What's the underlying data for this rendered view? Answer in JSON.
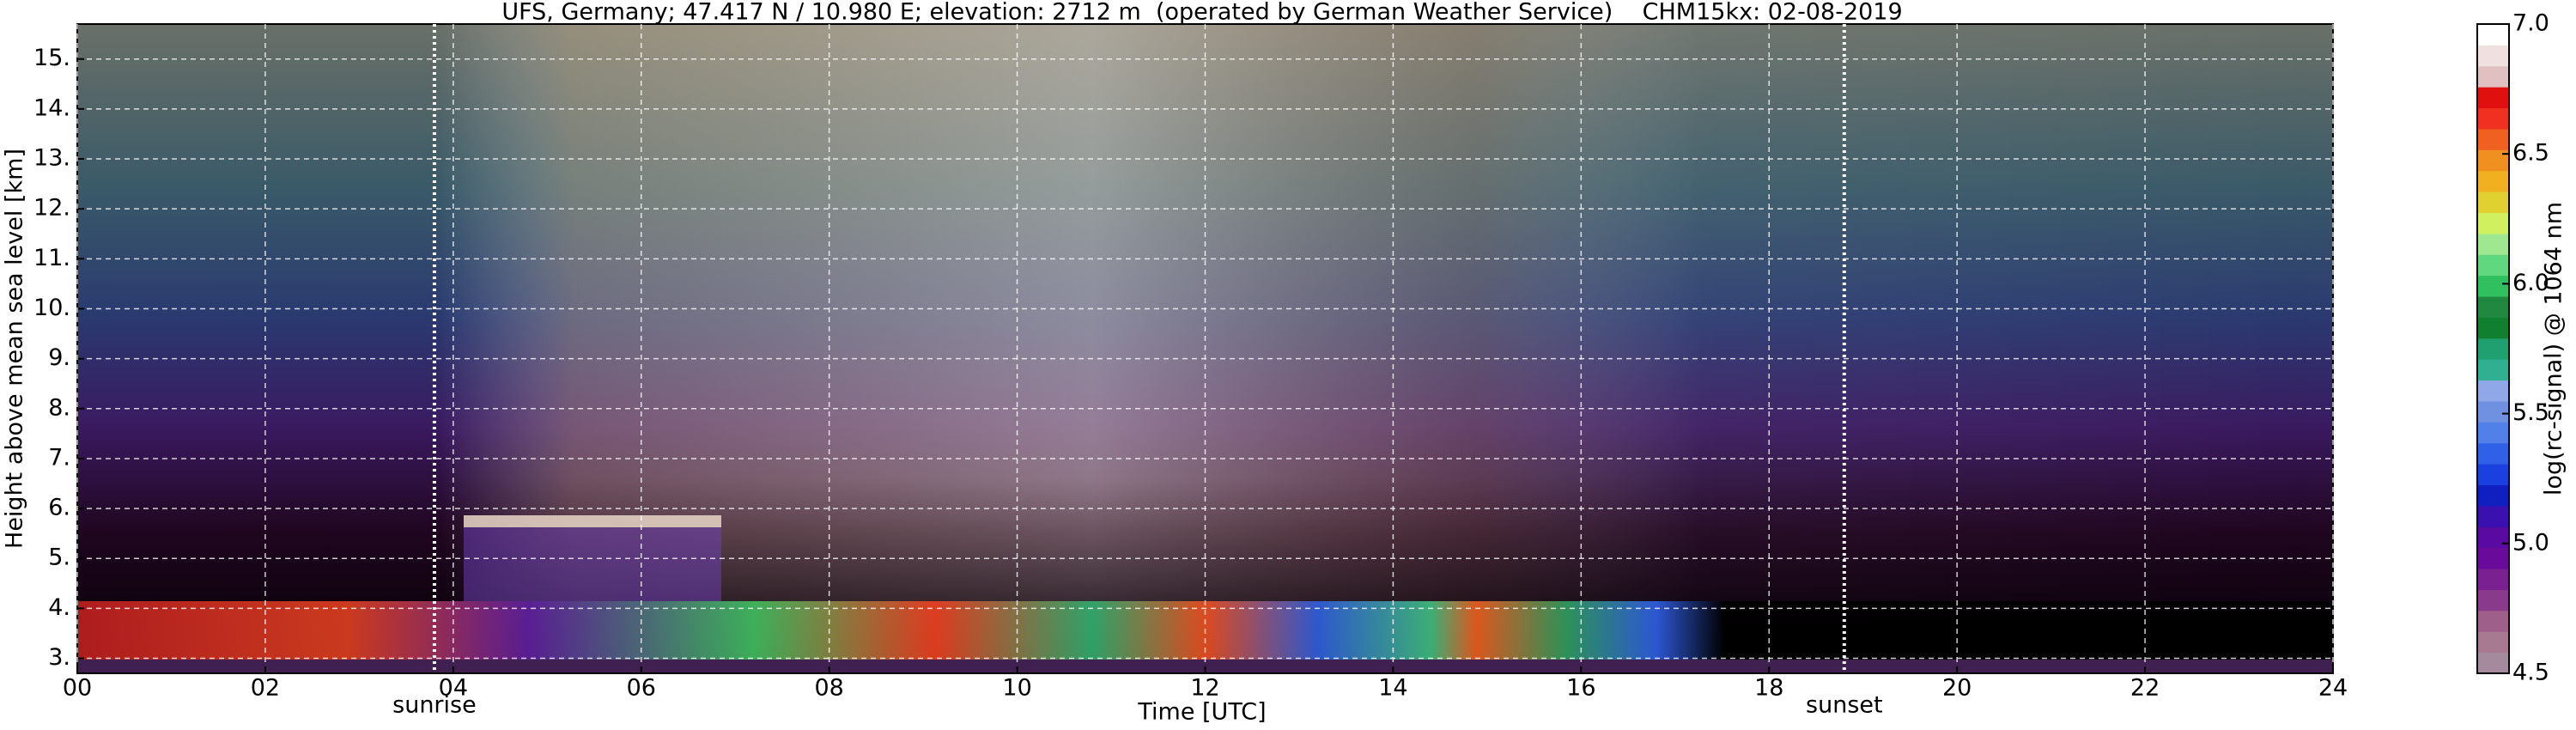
{
  "chart_data": {
    "type": "heatmap",
    "title": "UFS, Germany; 47.417 N / 10.980 E; elevation: 2712 m  (operated by German Weather Service)    CHM15kx: 02-08-2019",
    "xlabel": "Time [UTC]",
    "ylabel": "Height above mean sea level [km]",
    "xlim": [
      0,
      24
    ],
    "xticks": [
      {
        "value": 0,
        "label": "00"
      },
      {
        "value": 2,
        "label": "02"
      },
      {
        "value": 4,
        "label": "04"
      },
      {
        "value": 6,
        "label": "06"
      },
      {
        "value": 8,
        "label": "08"
      },
      10,
      12,
      14,
      16,
      18,
      20,
      22,
      24
    ],
    "ylim": [
      2.7,
      15.7
    ],
    "yticks": [
      {
        "value": 3,
        "label": "3."
      },
      {
        "value": 4,
        "label": "4."
      },
      {
        "value": 5,
        "label": "5."
      },
      {
        "value": 6,
        "label": "6."
      },
      {
        "value": 7,
        "label": "7."
      },
      {
        "value": 8,
        "label": "8."
      },
      {
        "value": 9,
        "label": "9."
      },
      {
        "value": 10,
        "label": "10."
      },
      {
        "value": 11,
        "label": "11."
      },
      {
        "value": 12,
        "label": "12."
      },
      {
        "value": 13,
        "label": "13."
      },
      {
        "value": 14,
        "label": "14."
      },
      {
        "value": 15,
        "label": "15."
      }
    ],
    "grid": true,
    "annotations": [
      {
        "text": "sunrise",
        "x": 3.8
      },
      {
        "text": "sunset",
        "x": 18.8
      }
    ],
    "colorbar": {
      "label": "log(rc-signal) @ 1064 nm",
      "lim": [
        4.5,
        7.0
      ],
      "ticks": [
        4.5,
        {
          "value": 5,
          "label": "5.0"
        },
        5.5,
        {
          "value": 6,
          "label": "6.0"
        },
        6.5,
        {
          "value": 7,
          "label": "7.0"
        }
      ],
      "colors": [
        "#a58a9e",
        "#a87a92",
        "#9e5f8a",
        "#8a3a8a",
        "#7a2090",
        "#6a0a9a",
        "#5a0aa0",
        "#3a10b0",
        "#1020c0",
        "#1a40e0",
        "#3060e8",
        "#5080e8",
        "#7090e0",
        "#90a8e8",
        "#30b090",
        "#20a070",
        "#108030",
        "#208840",
        "#30c060",
        "#60d880",
        "#a0e890",
        "#d0f060",
        "#e0d030",
        "#f0b020",
        "#f09020",
        "#f06020",
        "#f03020",
        "#e01010",
        "#e0c0c0",
        "#f0e0e0",
        "#ffffff"
      ]
    }
  }
}
